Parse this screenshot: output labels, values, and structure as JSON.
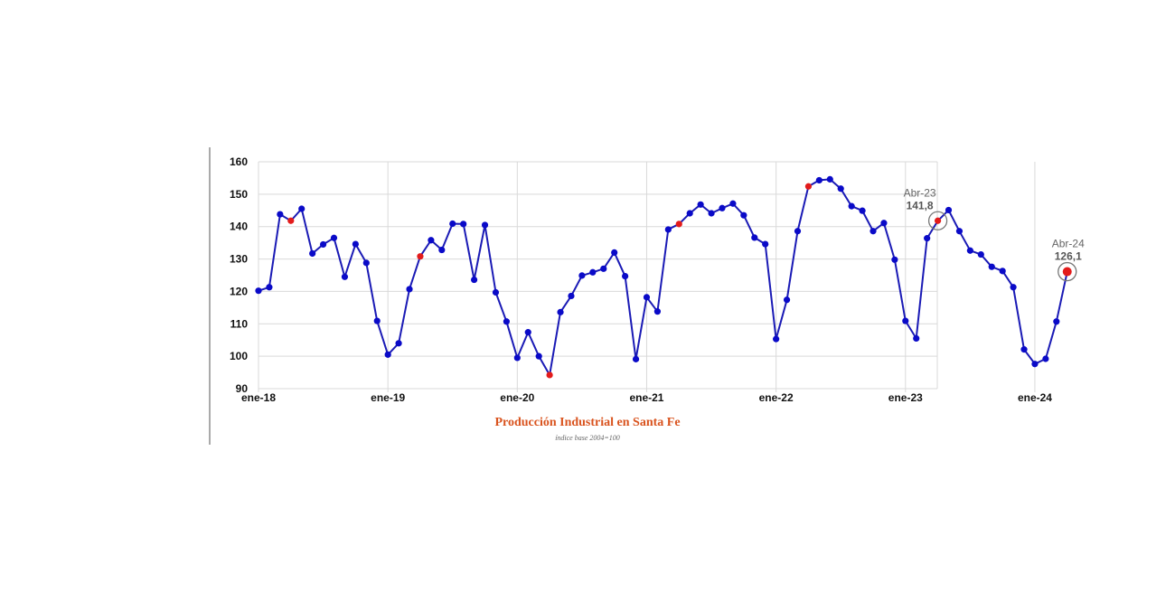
{
  "chart_data": {
    "type": "line",
    "title": "Producción Industrial en Santa Fe",
    "subtitle": "índice base 2004=100",
    "xlabel": "",
    "ylabel": "",
    "ylim": [
      90,
      160
    ],
    "yticks": [
      90,
      100,
      110,
      120,
      130,
      140,
      150,
      160
    ],
    "xticks": [
      {
        "index": 0,
        "label": "ene-18"
      },
      {
        "index": 12,
        "label": "ene-19"
      },
      {
        "index": 24,
        "label": "ene-20"
      },
      {
        "index": 36,
        "label": "ene-21"
      },
      {
        "index": 48,
        "label": "ene-22"
      },
      {
        "index": 60,
        "label": "ene-23"
      },
      {
        "index": 72,
        "label": "ene-24"
      }
    ],
    "grid": true,
    "colors": {
      "line": "#1a1ab5",
      "point": "#0a0ac8",
      "highlight": "#e31b1b",
      "grid": "#d9d9d9"
    },
    "x_start": "2018-01",
    "values": [
      120.2,
      121.3,
      143.8,
      141.8,
      145.5,
      131.7,
      134.5,
      136.5,
      124.5,
      134.6,
      128.8,
      110.9,
      100.5,
      104.0,
      120.7,
      130.8,
      135.8,
      132.8,
      140.9,
      140.8,
      123.6,
      140.5,
      119.7,
      110.7,
      99.5,
      107.4,
      100.0,
      94.2,
      113.6,
      118.6,
      124.9,
      125.9,
      127.0,
      132.0,
      124.7,
      99.1,
      118.2,
      113.8,
      139.1,
      140.8,
      144.1,
      146.8,
      144.1,
      145.7,
      147.1,
      143.5,
      136.6,
      134.6,
      105.3,
      117.4,
      138.6,
      152.4,
      154.3,
      154.6,
      151.7,
      146.3,
      144.9,
      138.6,
      141.1,
      129.8,
      110.9,
      105.5,
      136.4,
      141.8,
      145.1,
      138.6,
      132.6,
      131.4,
      127.6,
      126.3,
      121.3,
      102.1,
      97.6,
      99.2,
      110.7,
      126.1
    ],
    "highlight_indices": [
      3,
      15,
      27,
      39,
      51,
      63,
      75
    ],
    "annotations": [
      {
        "index": 63,
        "label": "Abr-23",
        "value": "141,8"
      },
      {
        "index": 75,
        "label": "Abr-24",
        "value": "126,1"
      }
    ]
  }
}
